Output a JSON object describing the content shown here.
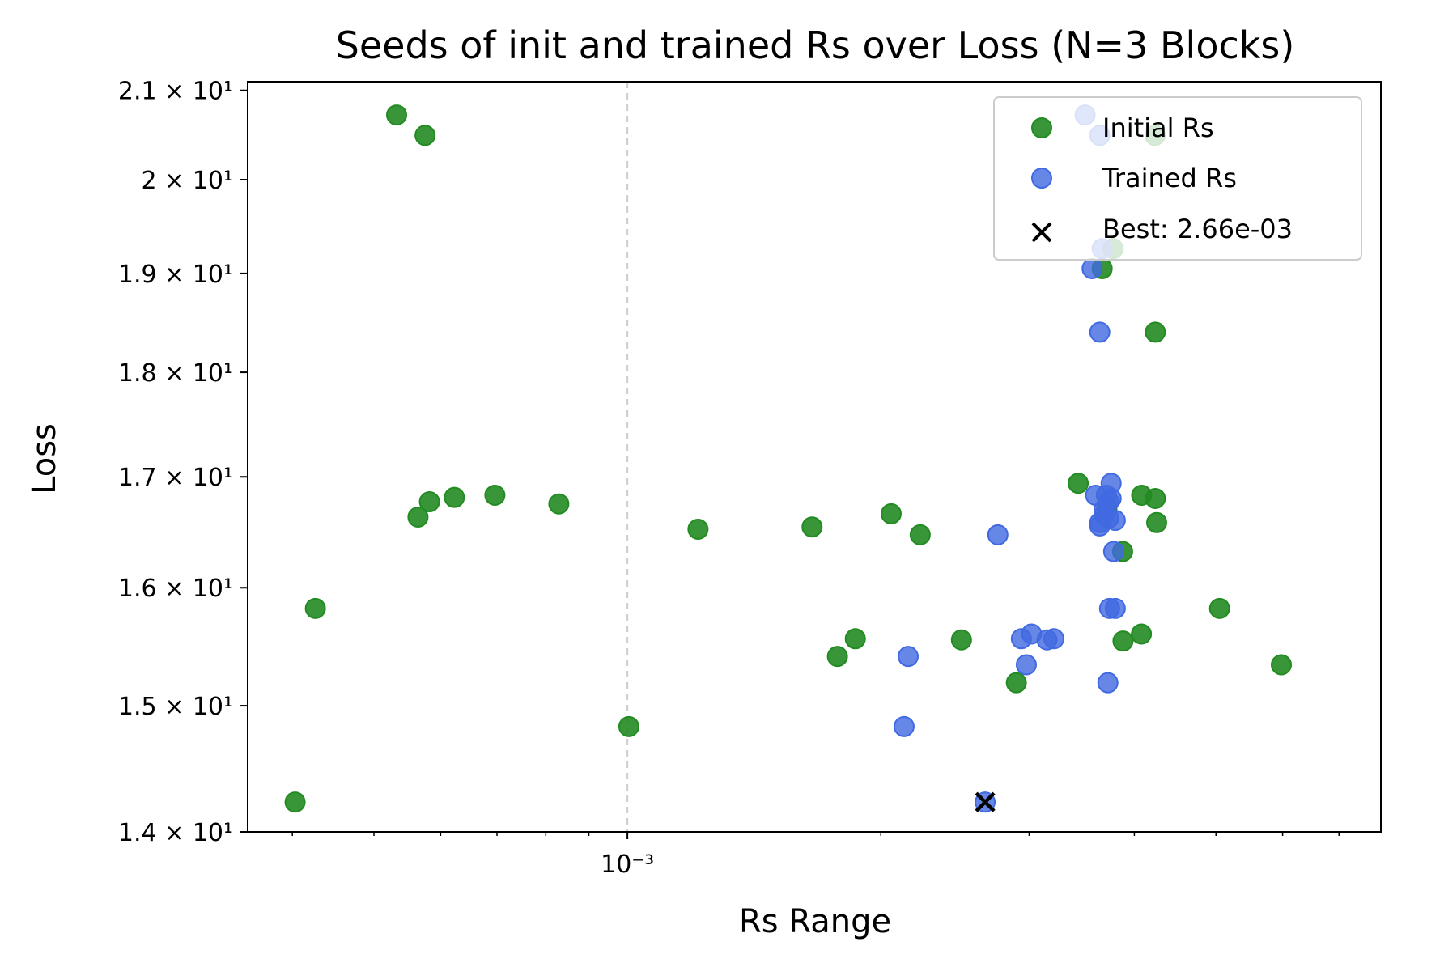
{
  "chart_data": {
    "type": "scatter",
    "title": "Seeds of init and trained Rs over Loss (N=3 Blocks)",
    "xlabel": "Rs Range",
    "ylabel": "Loss",
    "xscale": "log",
    "yscale": "log",
    "xlim": [
      0.000354,
      0.00785
    ],
    "ylim": [
      14.0,
      21.1
    ],
    "x_tick_major_label": "10⁻³",
    "y_ticks": [
      {
        "value": 14,
        "label": "1.4 × 10¹"
      },
      {
        "value": 15,
        "label": "1.5 × 10¹"
      },
      {
        "value": 16,
        "label": "1.6 × 10¹"
      },
      {
        "value": 17,
        "label": "1.7 × 10¹"
      },
      {
        "value": 18,
        "label": "1.8 × 10¹"
      },
      {
        "value": 19,
        "label": "1.9 × 10¹"
      },
      {
        "value": 20,
        "label": "2 × 10¹"
      },
      {
        "value": 21,
        "label": "2.1 × 10¹"
      }
    ],
    "reference_line_x": 0.001,
    "grid": false,
    "legend_position": "top-right",
    "series": [
      {
        "name": "Initial Rs",
        "color": "#228b22",
        "marker": "circle",
        "points": [
          [
            0.000403,
            14.23
          ],
          [
            0.000426,
            15.82
          ],
          [
            0.000532,
            20.72
          ],
          [
            0.000575,
            20.49
          ],
          [
            0.000564,
            16.63
          ],
          [
            0.000582,
            16.77
          ],
          [
            0.000623,
            16.81
          ],
          [
            0.000696,
            16.83
          ],
          [
            0.000829,
            16.75
          ],
          [
            0.001004,
            14.83
          ],
          [
            0.001213,
            16.52
          ],
          [
            0.001657,
            16.54
          ],
          [
            0.001776,
            15.41
          ],
          [
            0.001865,
            15.56
          ],
          [
            0.002057,
            16.66
          ],
          [
            0.002227,
            16.47
          ],
          [
            0.002493,
            15.55
          ],
          [
            0.002897,
            15.19
          ],
          [
            0.003431,
            16.94
          ],
          [
            0.003663,
            19.05
          ],
          [
            0.003773,
            19.26
          ],
          [
            0.003712,
            16.72
          ],
          [
            0.003874,
            16.32
          ],
          [
            0.003878,
            15.54
          ],
          [
            0.004078,
            15.6
          ],
          [
            0.004081,
            16.83
          ],
          [
            0.004232,
            20.49
          ],
          [
            0.004236,
            18.4
          ],
          [
            0.004236,
            16.8
          ],
          [
            0.004252,
            16.58
          ],
          [
            0.00505,
            15.82
          ],
          [
            0.005979,
            15.34
          ]
        ]
      },
      {
        "name": "Trained Rs",
        "color": "#4169e1",
        "marker": "circle",
        "points": [
          [
            0.002131,
            14.83
          ],
          [
            0.002155,
            15.41
          ],
          [
            0.002754,
            16.47
          ],
          [
            0.002937,
            15.56
          ],
          [
            0.002977,
            15.34
          ],
          [
            0.00302,
            15.6
          ],
          [
            0.00315,
            15.55
          ],
          [
            0.00321,
            15.56
          ],
          [
            0.003496,
            20.72
          ],
          [
            0.003564,
            19.05
          ],
          [
            0.003598,
            16.83
          ],
          [
            0.003639,
            16.55
          ],
          [
            0.003639,
            20.49
          ],
          [
            0.003639,
            18.4
          ],
          [
            0.003639,
            16.58
          ],
          [
            0.003663,
            19.26
          ],
          [
            0.003682,
            16.65
          ],
          [
            0.003682,
            16.7
          ],
          [
            0.003705,
            16.83
          ],
          [
            0.003721,
            15.19
          ],
          [
            0.00373,
            16.62
          ],
          [
            0.00373,
            16.77
          ],
          [
            0.003738,
            15.82
          ],
          [
            0.003754,
            16.94
          ],
          [
            0.003754,
            16.8
          ],
          [
            0.00378,
            16.32
          ],
          [
            0.003797,
            15.82
          ],
          [
            0.003797,
            16.6
          ],
          [
            0.00266,
            14.23
          ]
        ]
      }
    ],
    "best": {
      "label": "Best: 2.66e-03",
      "x": 0.00266,
      "y": 14.23,
      "color": "#000000",
      "marker": "x"
    }
  }
}
